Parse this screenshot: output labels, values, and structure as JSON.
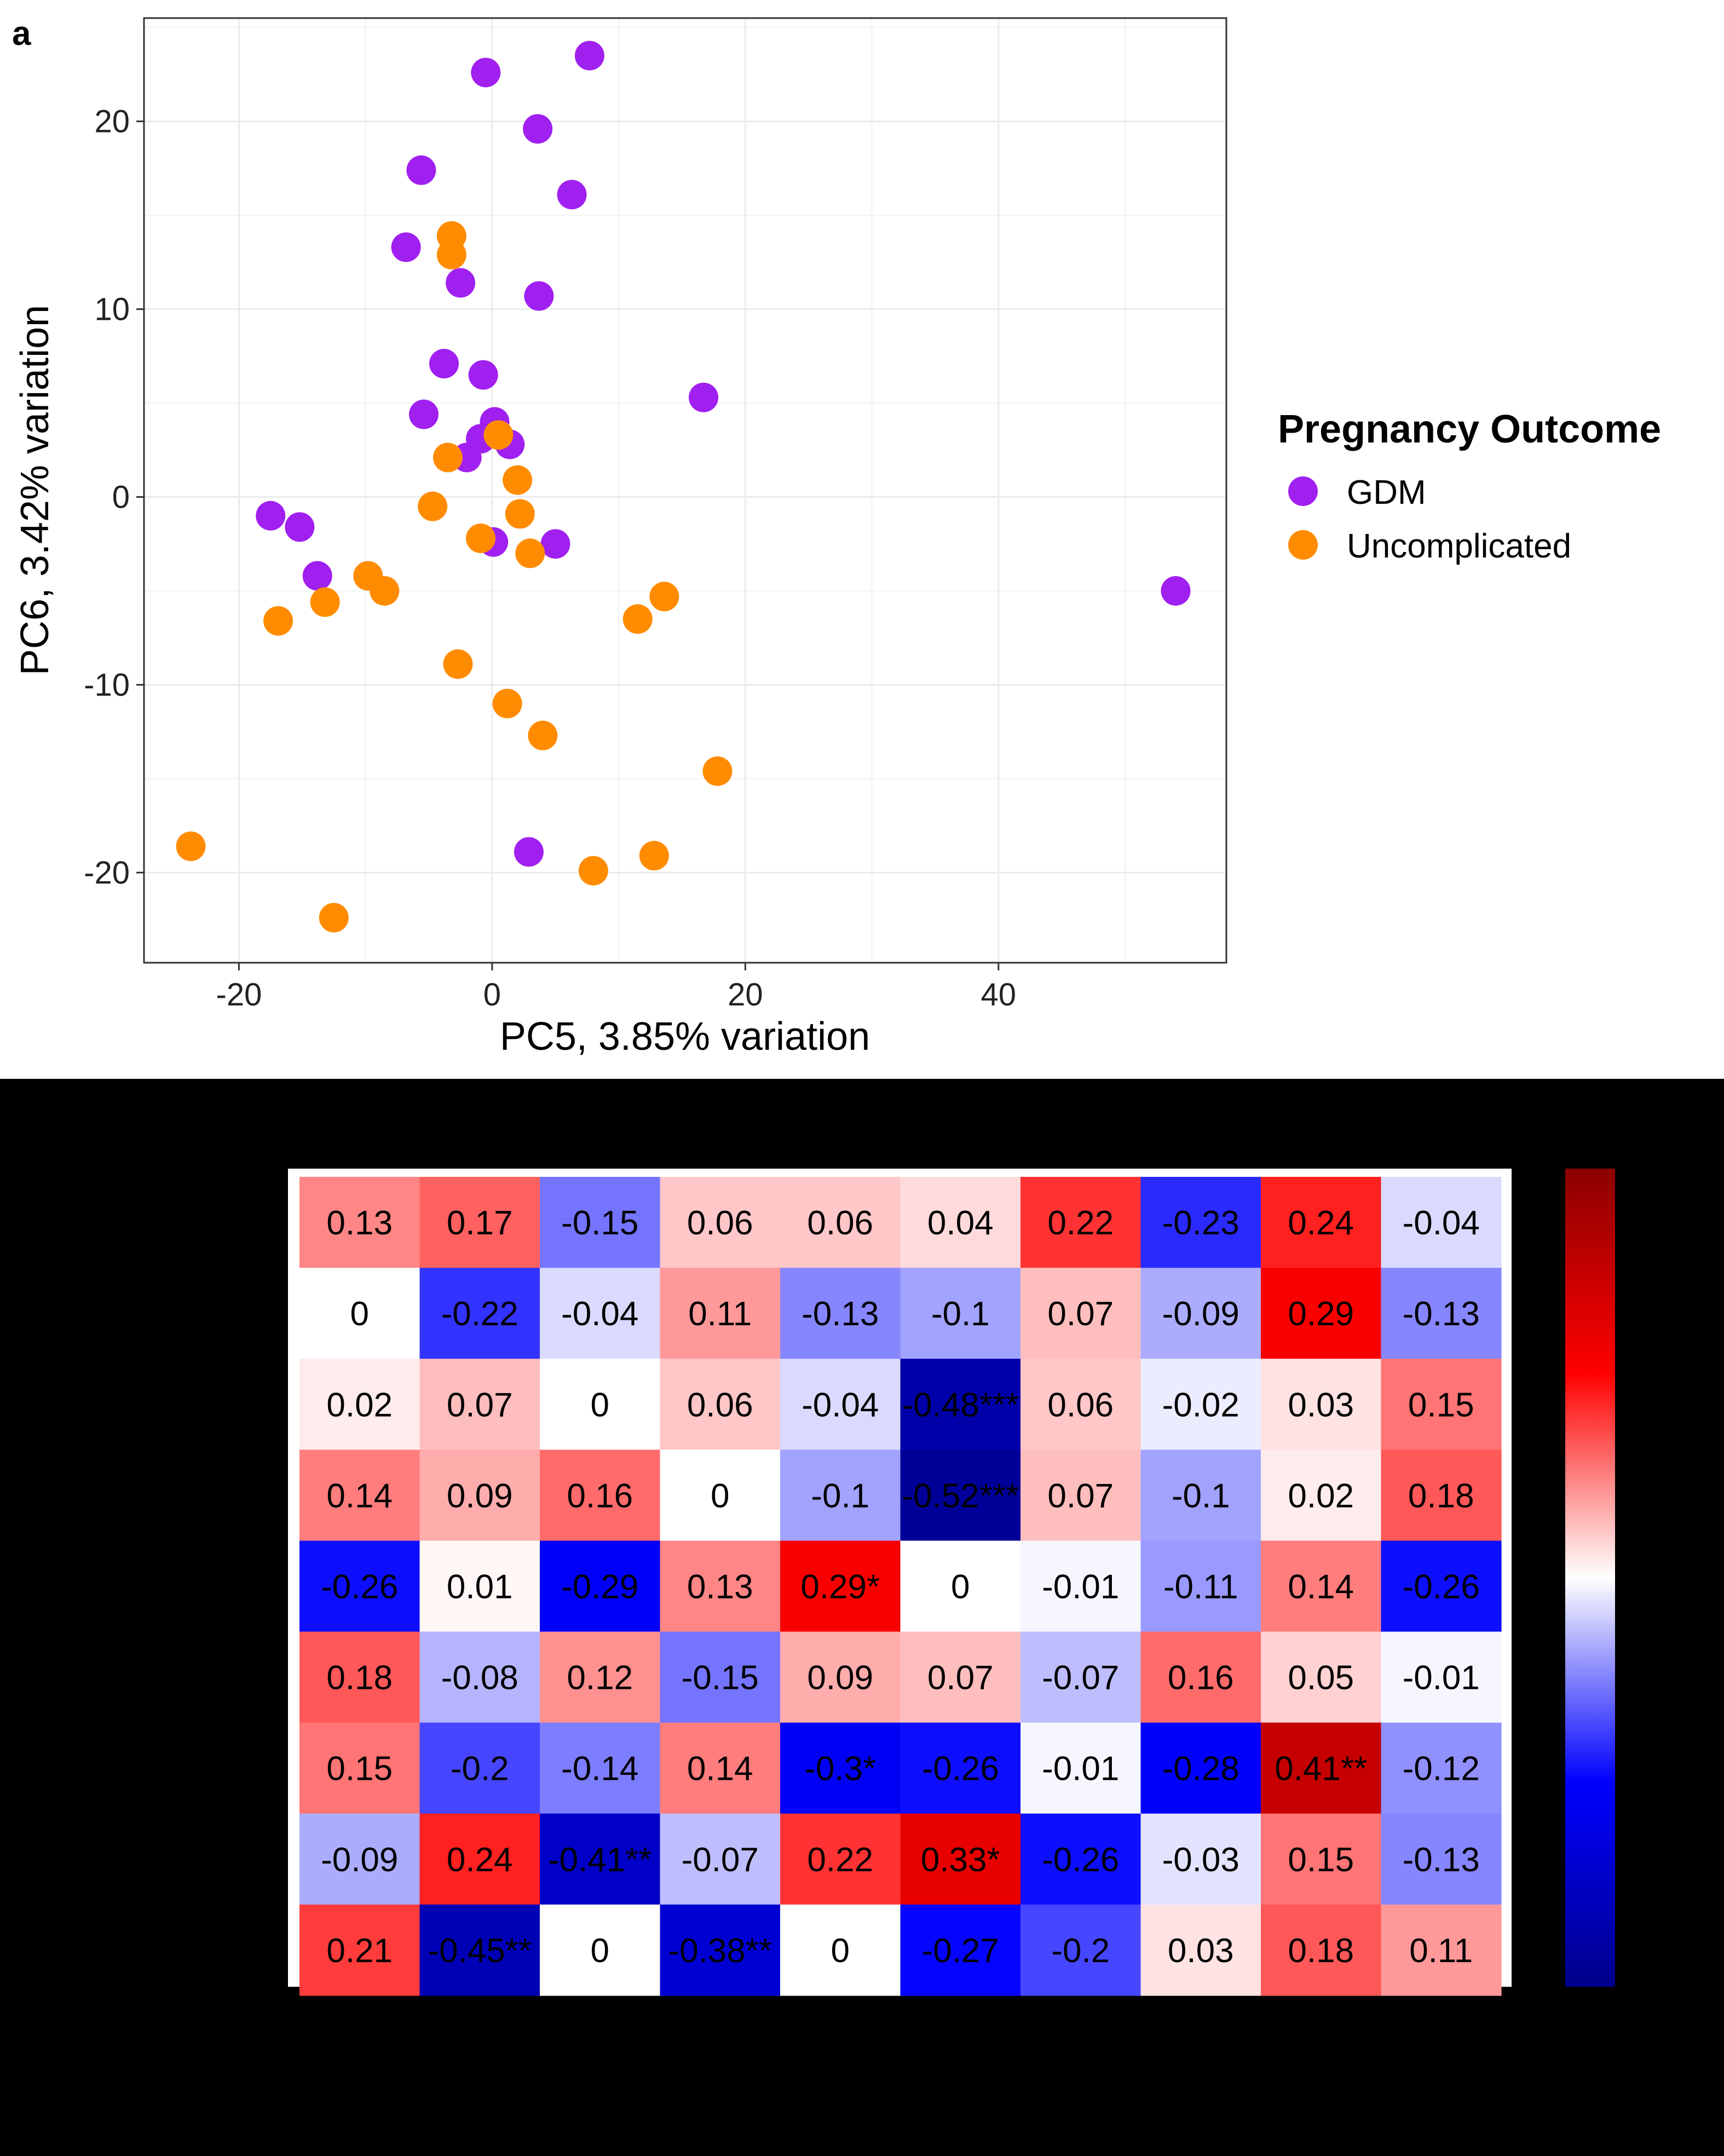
{
  "panel_label": "a",
  "chart_data": [
    {
      "type": "scatter",
      "xlabel": "PC5, 3.85% variation",
      "ylabel": "PC6, 3.42% variation",
      "xlim": [
        -27.5,
        58
      ],
      "ylim": [
        -24.8,
        25.5
      ],
      "x_ticks": [
        -20,
        0,
        20,
        40
      ],
      "y_ticks": [
        -20,
        -10,
        0,
        10,
        20
      ],
      "grid": true,
      "legend_title": "Pregnancy Outcome",
      "legend_position": "right",
      "series": [
        {
          "name": "GDM",
          "color": "#a020f0",
          "points": [
            [
              -0.5,
              22.6
            ],
            [
              7.7,
              23.5
            ],
            [
              3.6,
              19.6
            ],
            [
              -5.6,
              17.4
            ],
            [
              6.3,
              16.1
            ],
            [
              -6.8,
              13.3
            ],
            [
              -2.5,
              11.4
            ],
            [
              3.7,
              10.7
            ],
            [
              -3.8,
              7.1
            ],
            [
              -0.7,
              6.5
            ],
            [
              16.7,
              5.3
            ],
            [
              -5.4,
              4.4
            ],
            [
              0.2,
              4.0
            ],
            [
              -0.9,
              3.1
            ],
            [
              1.4,
              2.8
            ],
            [
              -2.0,
              2.1
            ],
            [
              0.1,
              -2.4
            ],
            [
              5.0,
              -2.5
            ],
            [
              -17.5,
              -1.0
            ],
            [
              -15.2,
              -1.6
            ],
            [
              -13.8,
              -4.2
            ],
            [
              2.9,
              -18.9
            ],
            [
              54.0,
              -5.0
            ]
          ]
        },
        {
          "name": "Uncomplicated",
          "color": "#ff8c00",
          "points": [
            [
              -3.2,
              13.9
            ],
            [
              -3.2,
              12.9
            ],
            [
              -3.5,
              2.1
            ],
            [
              0.5,
              3.3
            ],
            [
              2.0,
              0.9
            ],
            [
              -4.7,
              -0.5
            ],
            [
              2.2,
              -0.9
            ],
            [
              -0.9,
              -2.2
            ],
            [
              3.0,
              -3.0
            ],
            [
              -9.8,
              -4.2
            ],
            [
              -8.5,
              -5.0
            ],
            [
              -13.2,
              -5.6
            ],
            [
              -16.9,
              -6.6
            ],
            [
              11.5,
              -6.5
            ],
            [
              13.6,
              -5.3
            ],
            [
              -2.7,
              -8.9
            ],
            [
              1.2,
              -11.0
            ],
            [
              4.0,
              -12.7
            ],
            [
              17.8,
              -14.6
            ],
            [
              -23.8,
              -18.6
            ],
            [
              -12.5,
              -22.4
            ],
            [
              8.0,
              -19.9
            ],
            [
              12.8,
              -19.1
            ]
          ]
        }
      ]
    },
    {
      "type": "heatmap",
      "rows": 9,
      "cols": 10,
      "color_scale": [
        "#00008b",
        "#0000ff",
        "#ffffff",
        "#ff0000",
        "#8b0000"
      ],
      "value_range": [
        -0.55,
        0.55
      ],
      "values": [
        [
          0.13,
          0.17,
          -0.15,
          0.06,
          0.06,
          0.04,
          0.22,
          -0.23,
          0.24,
          -0.04
        ],
        [
          0,
          -0.22,
          -0.04,
          0.11,
          -0.13,
          -0.1,
          0.07,
          -0.09,
          0.29,
          -0.13
        ],
        [
          0.02,
          0.07,
          0,
          0.06,
          -0.04,
          -0.48,
          0.06,
          -0.02,
          0.03,
          0.15
        ],
        [
          0.14,
          0.09,
          0.16,
          0,
          -0.1,
          -0.52,
          0.07,
          -0.1,
          0.02,
          0.18
        ],
        [
          -0.26,
          0.01,
          -0.29,
          0.13,
          0.29,
          0,
          -0.01,
          -0.11,
          0.14,
          -0.26
        ],
        [
          0.18,
          -0.08,
          0.12,
          -0.15,
          0.09,
          0.07,
          -0.07,
          0.16,
          0.05,
          -0.01
        ],
        [
          0.15,
          -0.2,
          -0.14,
          0.14,
          -0.3,
          -0.26,
          -0.01,
          -0.28,
          0.41,
          -0.12
        ],
        [
          -0.09,
          0.24,
          -0.41,
          -0.07,
          0.22,
          0.33,
          -0.26,
          -0.03,
          0.15,
          -0.13
        ],
        [
          0.21,
          -0.45,
          0,
          -0.38,
          0,
          -0.27,
          -0.2,
          0.03,
          0.18,
          0.11
        ]
      ],
      "labels": [
        [
          "0.13",
          "0.17",
          "-0.15",
          "0.06",
          "0.06",
          "0.04",
          "0.22",
          "-0.23",
          "0.24",
          "-0.04"
        ],
        [
          "0",
          "-0.22",
          "-0.04",
          "0.11",
          "-0.13",
          "-0.1",
          "0.07",
          "-0.09",
          "0.29",
          "-0.13"
        ],
        [
          "0.02",
          "0.07",
          "0",
          "0.06",
          "-0.04",
          "-0.48***",
          "0.06",
          "-0.02",
          "0.03",
          "0.15"
        ],
        [
          "0.14",
          "0.09",
          "0.16",
          "0",
          "-0.1",
          "-0.52***",
          "0.07",
          "-0.1",
          "0.02",
          "0.18"
        ],
        [
          "-0.26",
          "0.01",
          "-0.29",
          "0.13",
          "0.29*",
          "0",
          "-0.01",
          "-0.11",
          "0.14",
          "-0.26"
        ],
        [
          "0.18",
          "-0.08",
          "0.12",
          "-0.15",
          "0.09",
          "0.07",
          "-0.07",
          "0.16",
          "0.05",
          "-0.01"
        ],
        [
          "0.15",
          "-0.2",
          "-0.14",
          "0.14",
          "-0.3*",
          "-0.26",
          "-0.01",
          "-0.28",
          "0.41**",
          "-0.12"
        ],
        [
          "-0.09",
          "0.24",
          "-0.41**",
          "-0.07",
          "0.22",
          "0.33*",
          "-0.26",
          "-0.03",
          "0.15",
          "-0.13"
        ],
        [
          "0.21",
          "-0.45**",
          "0",
          "-0.38**",
          "0",
          "-0.27",
          "-0.2",
          "0.03",
          "0.18",
          "0.11"
        ]
      ],
      "has_colorbar": true
    }
  ]
}
